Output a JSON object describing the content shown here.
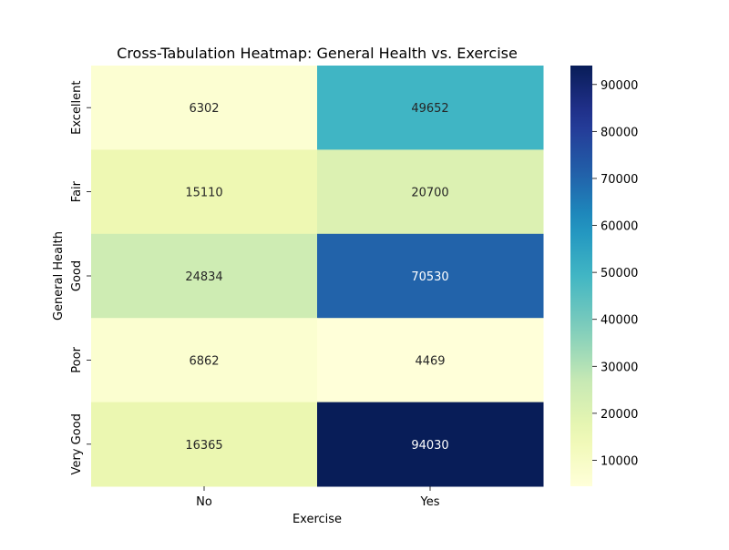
{
  "chart_data": {
    "type": "heatmap",
    "title": "Cross-Tabulation Heatmap: General Health vs. Exercise",
    "xlabel": "Exercise",
    "ylabel": "General Health",
    "x_categories": [
      "No",
      "Yes"
    ],
    "y_categories": [
      "Excellent",
      "Fair",
      "Good",
      "Poor",
      "Very Good"
    ],
    "values": [
      [
        6302,
        49652
      ],
      [
        15110,
        20700
      ],
      [
        24834,
        70530
      ],
      [
        6862,
        4469
      ],
      [
        16365,
        94030
      ]
    ],
    "colorbar": {
      "min": 4469,
      "max": 94030,
      "ticks": [
        10000,
        20000,
        30000,
        40000,
        50000,
        60000,
        70000,
        80000,
        90000
      ],
      "colormap": "YlGnBu"
    }
  }
}
